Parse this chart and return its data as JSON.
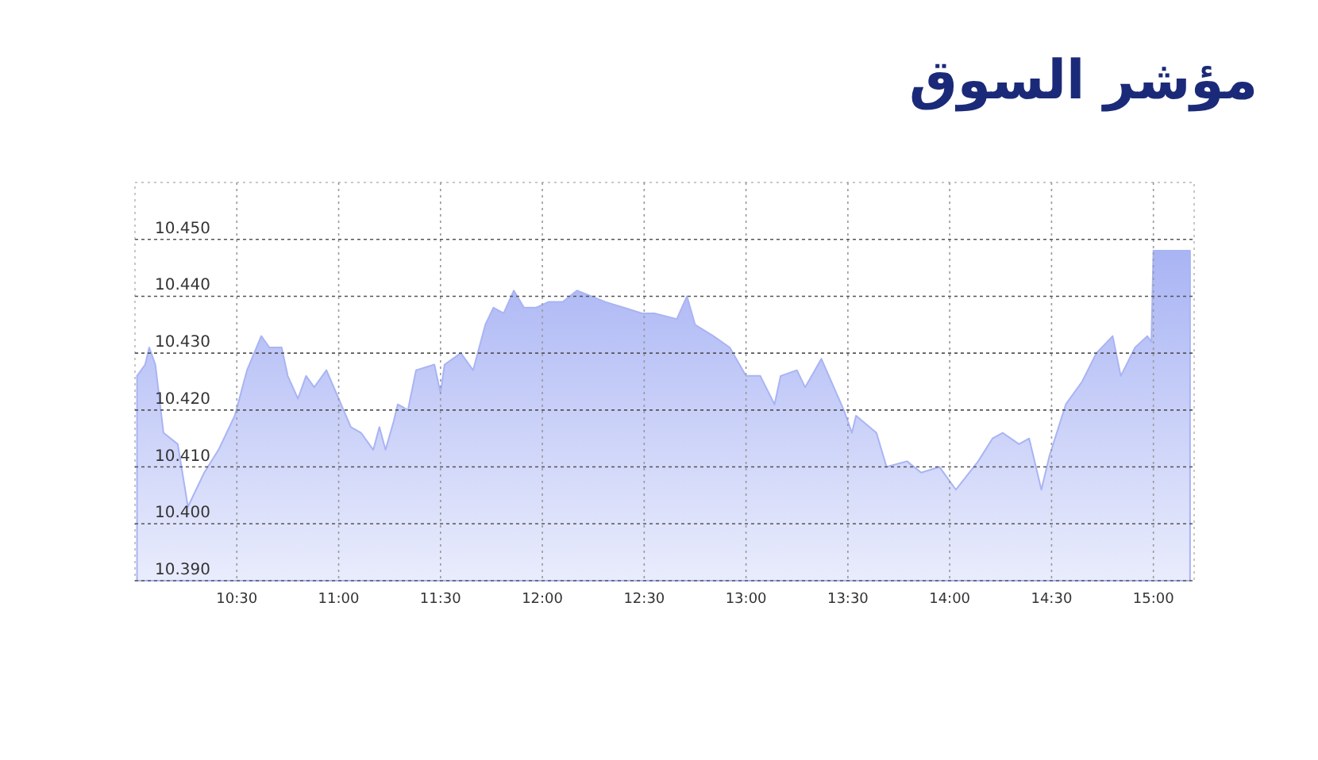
{
  "chart_data": {
    "type": "area",
    "title": "مؤشر السوق",
    "x": [
      10.01,
      10.05,
      10.07,
      10.1,
      10.14,
      10.21,
      10.26,
      10.34,
      10.41,
      10.49,
      10.55,
      10.62,
      10.66,
      10.72,
      10.75,
      10.8,
      10.84,
      10.88,
      10.94,
      11.0,
      11.06,
      11.11,
      11.17,
      11.2,
      11.23,
      11.27,
      11.29,
      11.34,
      11.38,
      11.47,
      11.5,
      11.52,
      11.6,
      11.66,
      11.72,
      11.76,
      11.81,
      11.86,
      11.91,
      11.97,
      12.03,
      12.1,
      12.17,
      12.24,
      12.31,
      12.4,
      12.49,
      12.55,
      12.66,
      12.71,
      12.75,
      12.84,
      12.92,
      13.0,
      13.07,
      13.14,
      13.17,
      13.25,
      13.29,
      13.37,
      13.48,
      13.52,
      13.54,
      13.64,
      13.69,
      13.79,
      13.86,
      13.95,
      14.03,
      14.14,
      14.21,
      14.26,
      14.34,
      14.39,
      14.45,
      14.49,
      14.57,
      14.65,
      14.72,
      14.8,
      14.84,
      14.91,
      14.97,
      14.99,
      15.0,
      15.18
    ],
    "series": [
      {
        "color": "#a9b4f4",
        "values": [
          10.426,
          10.428,
          10.431,
          10.428,
          10.416,
          10.414,
          10.403,
          10.409,
          10.413,
          10.419,
          10.427,
          10.433,
          10.431,
          10.431,
          10.426,
          10.422,
          10.426,
          10.424,
          10.427,
          10.422,
          10.417,
          10.416,
          10.413,
          10.417,
          10.413,
          10.418,
          10.421,
          10.42,
          10.427,
          10.428,
          10.423,
          10.428,
          10.43,
          10.427,
          10.435,
          10.438,
          10.437,
          10.441,
          10.438,
          10.438,
          10.439,
          10.439,
          10.441,
          10.44,
          10.439,
          10.438,
          10.437,
          10.437,
          10.436,
          10.44,
          10.435,
          10.433,
          10.431,
          10.426,
          10.426,
          10.421,
          10.426,
          10.427,
          10.424,
          10.429,
          10.42,
          10.416,
          10.419,
          10.416,
          10.41,
          10.411,
          10.409,
          10.41,
          10.406,
          10.411,
          10.415,
          10.416,
          10.414,
          10.415,
          10.406,
          10.412,
          10.421,
          10.425,
          10.43,
          10.433,
          10.426,
          10.431,
          10.433,
          10.432,
          10.448,
          10.448
        ]
      }
    ],
    "xlim": [
      10.0,
      15.2
    ],
    "xticks": [
      {
        "value": 10.5,
        "label": "10:30"
      },
      {
        "value": 11.0,
        "label": "11:00"
      },
      {
        "value": 11.5,
        "label": "11:30"
      },
      {
        "value": 12.0,
        "label": "12:00"
      },
      {
        "value": 12.5,
        "label": "12:30"
      },
      {
        "value": 13.0,
        "label": "13:00"
      },
      {
        "value": 13.5,
        "label": "13:30"
      },
      {
        "value": 14.0,
        "label": "14:00"
      },
      {
        "value": 14.5,
        "label": "14:30"
      },
      {
        "value": 15.0,
        "label": "15:00"
      }
    ],
    "ylim": [
      10.39,
      10.46
    ],
    "yticks": [
      {
        "value": 10.39,
        "label": "10.390"
      },
      {
        "value": 10.4,
        "label": "10.400"
      },
      {
        "value": 10.41,
        "label": "10.410"
      },
      {
        "value": 10.42,
        "label": "10.420"
      },
      {
        "value": 10.43,
        "label": "10.430"
      },
      {
        "value": 10.44,
        "label": "10.440"
      },
      {
        "value": 10.45,
        "label": "10.450"
      }
    ],
    "grid": true
  }
}
